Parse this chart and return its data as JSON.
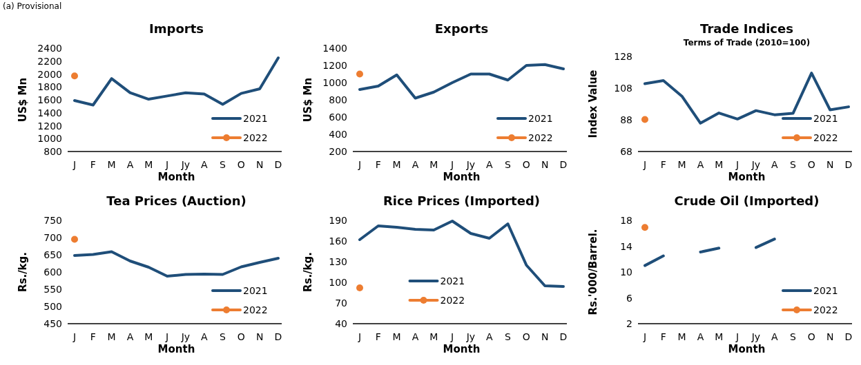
{
  "chart_data": [
    {
      "type": "line",
      "title": "Imports",
      "annotations": [
        "(a) Provisional"
      ],
      "xlabel": "Month",
      "ylabel": "US$ Mn",
      "categories": [
        "J",
        "F",
        "M",
        "A",
        "M",
        "J",
        "Jy",
        "A",
        "S",
        "O",
        "N",
        "D"
      ],
      "ylim": [
        800,
        2400
      ],
      "yticks": [
        800,
        1000,
        1200,
        1400,
        1600,
        1800,
        2000,
        2200,
        2400
      ],
      "legend": "bottom right",
      "series": [
        {
          "name": "2021",
          "color": "#1f4e79",
          "marker": "none",
          "values": [
            1590,
            1520,
            1930,
            1710,
            1610,
            1660,
            1710,
            1690,
            1530,
            1700,
            1770,
            2250
          ]
        },
        {
          "name": "2022",
          "color": "#ed7d31",
          "marker": "circle",
          "values": [
            1970,
            null,
            null,
            null,
            null,
            null,
            null,
            null,
            null,
            null,
            null,
            null
          ]
        }
      ]
    },
    {
      "type": "line",
      "title": "Exports",
      "xlabel": "Month",
      "ylabel": "US$ Mn",
      "categories": [
        "J",
        "F",
        "M",
        "A",
        "M",
        "J",
        "Jy",
        "A",
        "S",
        "O",
        "N",
        "D"
      ],
      "ylim": [
        200,
        1400
      ],
      "yticks": [
        200,
        400,
        600,
        800,
        1000,
        1200,
        1400
      ],
      "legend": "bottom right",
      "series": [
        {
          "name": "2021",
          "color": "#1f4e79",
          "marker": "none",
          "values": [
            920,
            960,
            1090,
            820,
            890,
            1000,
            1100,
            1100,
            1030,
            1200,
            1210,
            1160
          ]
        },
        {
          "name": "2022",
          "color": "#ed7d31",
          "marker": "circle",
          "values": [
            1100,
            null,
            null,
            null,
            null,
            null,
            null,
            null,
            null,
            null,
            null,
            null
          ]
        }
      ]
    },
    {
      "type": "line",
      "title": "Trade Indices",
      "subtitle": "Terms of Trade (2010=100)",
      "xlabel": "Month",
      "ylabel": "Index Value",
      "categories": [
        "J",
        "F",
        "M",
        "A",
        "M",
        "J",
        "Jy",
        "A",
        "S",
        "O",
        "N",
        "D"
      ],
      "ylim": [
        68,
        128
      ],
      "yticks": [
        68,
        88,
        108,
        128
      ],
      "legend": "bottom right",
      "series": [
        {
          "name": "2021",
          "color": "#1f4e79",
          "marker": "none",
          "values": [
            110.8,
            112.8,
            102.9,
            85.9,
            92.3,
            88.5,
            93.8,
            91.2,
            92.1,
            117.5,
            94.3,
            96.2
          ]
        },
        {
          "name": "2022",
          "color": "#ed7d31",
          "marker": "circle",
          "values": [
            88.2,
            null,
            null,
            null,
            null,
            null,
            null,
            null,
            null,
            null,
            null,
            null
          ]
        }
      ]
    },
    {
      "type": "line",
      "title": "Tea Prices (Auction)",
      "xlabel": "Month",
      "ylabel": "Rs./kg.",
      "categories": [
        "J",
        "F",
        "M",
        "A",
        "M",
        "J",
        "Jy",
        "A",
        "S",
        "O",
        "N",
        "D"
      ],
      "ylim": [
        450,
        750
      ],
      "yticks": [
        450,
        500,
        550,
        600,
        650,
        700,
        750
      ],
      "legend": "bottom right",
      "series": [
        {
          "name": "2021",
          "color": "#1f4e79",
          "marker": "none",
          "values": [
            648,
            651,
            659,
            632,
            614,
            588,
            593,
            594,
            593,
            615,
            628,
            640
          ]
        },
        {
          "name": "2022",
          "color": "#ed7d31",
          "marker": "circle",
          "values": [
            695,
            null,
            null,
            null,
            null,
            null,
            null,
            null,
            null,
            null,
            null,
            null
          ]
        }
      ]
    },
    {
      "type": "line",
      "title": "Rice Prices (Imported)",
      "xlabel": "Month",
      "ylabel": "Rs./kg.",
      "categories": [
        "J",
        "F",
        "M",
        "A",
        "M",
        "J",
        "Jy",
        "A",
        "S",
        "O",
        "N",
        "D"
      ],
      "ylim": [
        40,
        190
      ],
      "yticks": [
        40,
        70,
        100,
        130,
        160,
        190
      ],
      "legend": "bottom",
      "series": [
        {
          "name": "2021",
          "color": "#1f4e79",
          "marker": "none",
          "values": [
            162,
            182,
            180,
            177,
            176,
            189,
            171,
            164,
            185,
            125,
            95,
            94
          ]
        },
        {
          "name": "2022",
          "color": "#ed7d31",
          "marker": "circle",
          "values": [
            92,
            null,
            null,
            null,
            null,
            null,
            null,
            null,
            null,
            null,
            null,
            null
          ]
        }
      ]
    },
    {
      "type": "line",
      "title": "Crude Oil (Imported)",
      "xlabel": "Month",
      "ylabel": "Rs.'000/Barrel.",
      "categories": [
        "J",
        "F",
        "M",
        "A",
        "M",
        "J",
        "Jy",
        "A",
        "S",
        "O",
        "N",
        "D"
      ],
      "ylim": [
        2,
        18
      ],
      "yticks": [
        2,
        6,
        10,
        14,
        18
      ],
      "legend": "bottom right",
      "series": [
        {
          "name": "2021",
          "color": "#1f4e79",
          "marker": "none",
          "values": [
            11.0,
            12.5,
            null,
            13.1,
            13.7,
            null,
            13.8,
            15.1,
            null,
            null,
            null,
            null
          ]
        },
        {
          "name": "2022",
          "color": "#ed7d31",
          "marker": "circle",
          "values": [
            16.9,
            null,
            null,
            null,
            null,
            null,
            null,
            null,
            null,
            null,
            null,
            null
          ]
        }
      ]
    }
  ]
}
